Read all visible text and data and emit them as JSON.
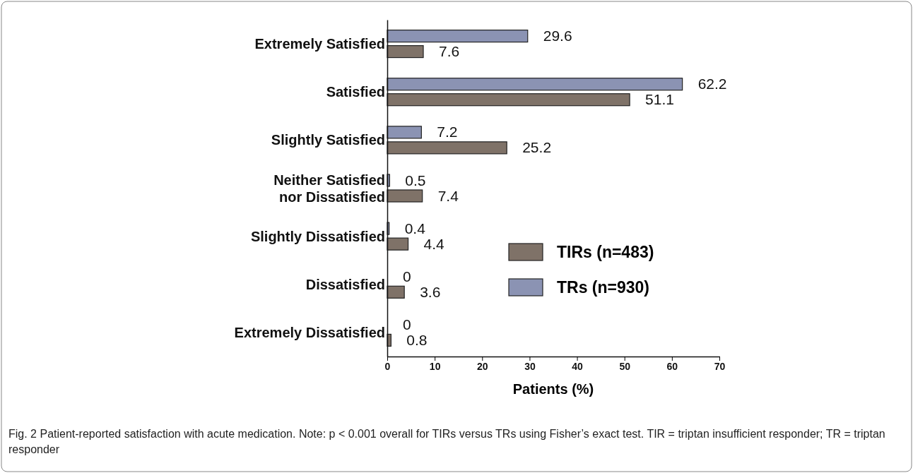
{
  "chart_data": {
    "type": "bar",
    "orientation": "horizontal",
    "xlabel": "Patients (%)",
    "categories": [
      "Extremely Satisfied",
      "Satisfied",
      "Slightly Satisfied",
      "Neither Satisfied nor Dissatisfied",
      "Slightly Dissatisfied",
      "Dissatisfied",
      "Extremely Dissatisfied"
    ],
    "series": [
      {
        "name": "TRs (n=930)",
        "color": "#8b93b3",
        "values": [
          29.6,
          62.2,
          7.2,
          0.5,
          0.4,
          0,
          0
        ]
      },
      {
        "name": "TIRs (n=483)",
        "color": "#7f7268",
        "values": [
          7.6,
          51.1,
          25.2,
          7.4,
          4.4,
          3.6,
          0.8
        ]
      }
    ],
    "xlim": [
      0,
      70
    ],
    "xticks": [
      0,
      10,
      20,
      30,
      40,
      50,
      60,
      70
    ],
    "data_labels": true,
    "legend": "right",
    "grid": false,
    "annotations": [
      "Fig. 2 Patient-reported satisfaction with acute medication. Note: p < 0.001 overall for TIRs versus TRs using Fisher’s exact test. TIR = triptan insufficient responder; TR = triptan responder"
    ]
  }
}
